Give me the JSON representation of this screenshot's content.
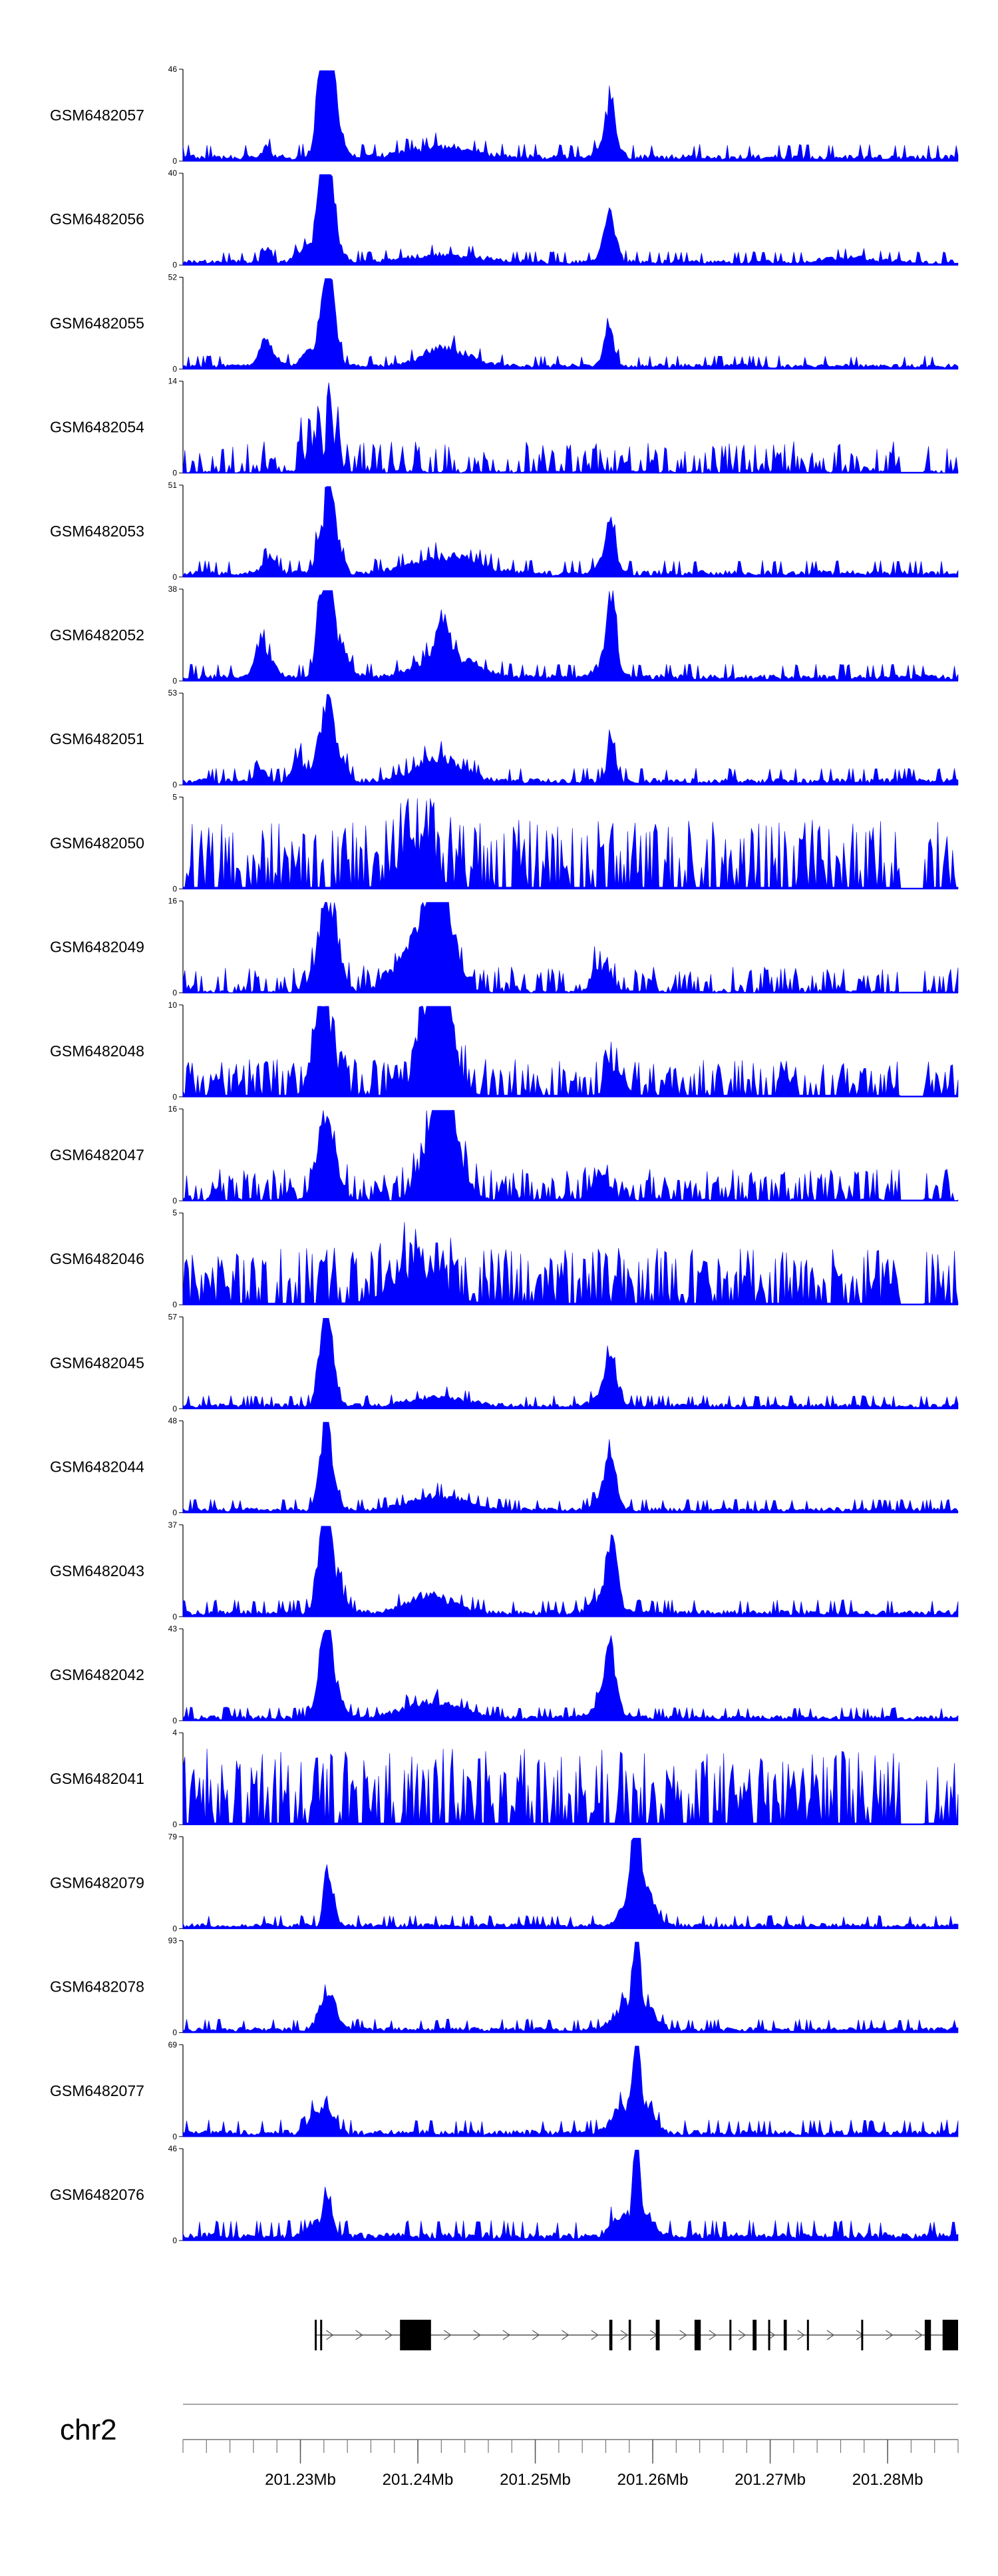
{
  "chart_data": {
    "type": "area",
    "chromosome": "chr2",
    "series_color": "#0000ff",
    "tracks": [
      {
        "name": "GSM6482057",
        "ymax": 46,
        "profile": "signal",
        "noise": 0.05,
        "peaks": [
          [
            0.176,
            0.42,
            0.004
          ],
          [
            0.18,
            0.45,
            0.004
          ],
          [
            0.18,
            0.25,
            0.01
          ],
          [
            0.187,
            1.0,
            0.004
          ],
          [
            0.195,
            0.6,
            0.004
          ],
          [
            0.195,
            0.25,
            0.012
          ],
          [
            0.108,
            0.15,
            0.004
          ],
          [
            0.334,
            0.12,
            0.04
          ],
          [
            0.552,
            0.55,
            0.004
          ],
          [
            0.549,
            0.25,
            0.01
          ]
        ]
      },
      {
        "name": "GSM6482056",
        "ymax": 40,
        "profile": "signal",
        "noise": 0.04,
        "peaks": [
          [
            0.11,
            0.15,
            0.005
          ],
          [
            0.155,
            0.12,
            0.01
          ],
          [
            0.176,
            0.45,
            0.004
          ],
          [
            0.188,
            1.0,
            0.006
          ],
          [
            0.185,
            0.4,
            0.014
          ],
          [
            0.34,
            0.08,
            0.045
          ],
          [
            0.55,
            0.5,
            0.008
          ],
          [
            0.86,
            0.05,
            0.03
          ]
        ]
      },
      {
        "name": "GSM6482055",
        "ymax": 52,
        "profile": "signal",
        "noise": 0.04,
        "peaks": [
          [
            0.105,
            0.2,
            0.006
          ],
          [
            0.112,
            0.12,
            0.012
          ],
          [
            0.162,
            0.18,
            0.008
          ],
          [
            0.178,
            0.42,
            0.005
          ],
          [
            0.187,
            1.0,
            0.005
          ],
          [
            0.196,
            0.4,
            0.006
          ],
          [
            0.34,
            0.2,
            0.03
          ],
          [
            0.55,
            0.45,
            0.006
          ]
        ]
      },
      {
        "name": "GSM6482054",
        "ymax": 14,
        "profile": "sparse",
        "noise": 0.22,
        "peaks": [
          [
            0.152,
            0.35,
            0.003
          ],
          [
            0.163,
            0.45,
            0.003
          ],
          [
            0.175,
            0.8,
            0.003
          ],
          [
            0.188,
            1.0,
            0.003
          ],
          [
            0.2,
            0.55,
            0.003
          ]
        ]
      },
      {
        "name": "GSM6482053",
        "ymax": 51,
        "profile": "signal",
        "noise": 0.05,
        "peaks": [
          [
            0.112,
            0.18,
            0.008
          ],
          [
            0.176,
            0.4,
            0.005
          ],
          [
            0.188,
            1.0,
            0.004
          ],
          [
            0.195,
            0.45,
            0.008
          ],
          [
            0.34,
            0.18,
            0.04
          ],
          [
            0.552,
            0.45,
            0.005
          ],
          [
            0.548,
            0.2,
            0.01
          ]
        ]
      },
      {
        "name": "GSM6482052",
        "ymax": 38,
        "profile": "signal",
        "noise": 0.05,
        "peaks": [
          [
            0.1,
            0.3,
            0.006
          ],
          [
            0.108,
            0.15,
            0.014
          ],
          [
            0.176,
            0.55,
            0.006
          ],
          [
            0.188,
            1.0,
            0.006
          ],
          [
            0.2,
            0.35,
            0.012
          ],
          [
            0.335,
            0.45,
            0.008
          ],
          [
            0.34,
            0.25,
            0.035
          ],
          [
            0.553,
            0.7,
            0.005
          ],
          [
            0.548,
            0.25,
            0.012
          ]
        ]
      },
      {
        "name": "GSM6482051",
        "ymax": 53,
        "profile": "signal",
        "noise": 0.05,
        "peaks": [
          [
            0.1,
            0.15,
            0.006
          ],
          [
            0.15,
            0.25,
            0.008
          ],
          [
            0.176,
            0.4,
            0.006
          ],
          [
            0.188,
            1.0,
            0.005
          ],
          [
            0.2,
            0.3,
            0.01
          ],
          [
            0.33,
            0.25,
            0.03
          ],
          [
            0.553,
            0.45,
            0.005
          ]
        ]
      },
      {
        "name": "GSM6482050",
        "ymax": 5,
        "profile": "noisy",
        "noise": 0.55,
        "peaks": [
          [
            0.3,
            0.45,
            0.02
          ]
        ]
      },
      {
        "name": "GSM6482049",
        "ymax": 16,
        "profile": "sparse",
        "noise": 0.18,
        "peaks": [
          [
            0.182,
            0.55,
            0.012
          ],
          [
            0.193,
            0.55,
            0.01
          ],
          [
            0.3,
            0.5,
            0.025
          ],
          [
            0.325,
            0.75,
            0.012
          ],
          [
            0.34,
            0.6,
            0.015
          ],
          [
            0.54,
            0.3,
            0.01
          ]
        ]
      },
      {
        "name": "GSM6482048",
        "ymax": 10,
        "profile": "noisy",
        "noise": 0.3,
        "peaks": [
          [
            0.175,
            0.55,
            0.01
          ],
          [
            0.185,
            0.7,
            0.01
          ],
          [
            0.315,
            0.6,
            0.015
          ],
          [
            0.33,
            0.75,
            0.012
          ],
          [
            0.34,
            0.5,
            0.015
          ],
          [
            0.56,
            0.3,
            0.01
          ]
        ]
      },
      {
        "name": "GSM6482047",
        "ymax": 16,
        "profile": "sparse",
        "noise": 0.22,
        "peaks": [
          [
            0.18,
            0.45,
            0.01
          ],
          [
            0.19,
            0.55,
            0.01
          ],
          [
            0.32,
            0.6,
            0.015
          ],
          [
            0.335,
            0.8,
            0.01
          ],
          [
            0.348,
            0.55,
            0.015
          ],
          [
            0.54,
            0.3,
            0.01
          ]
        ]
      },
      {
        "name": "GSM6482046",
        "ymax": 5,
        "profile": "noisy",
        "noise": 0.45,
        "peaks": [
          [
            0.3,
            0.35,
            0.03
          ]
        ]
      },
      {
        "name": "GSM6482045",
        "ymax": 57,
        "profile": "signal",
        "noise": 0.04,
        "peaks": [
          [
            0.176,
            0.42,
            0.005
          ],
          [
            0.185,
            1.0,
            0.004
          ],
          [
            0.19,
            0.45,
            0.008
          ],
          [
            0.33,
            0.1,
            0.035
          ],
          [
            0.552,
            0.42,
            0.006
          ],
          [
            0.546,
            0.2,
            0.012
          ]
        ]
      },
      {
        "name": "GSM6482044",
        "ymax": 48,
        "profile": "signal",
        "noise": 0.04,
        "peaks": [
          [
            0.176,
            0.4,
            0.005
          ],
          [
            0.185,
            1.0,
            0.004
          ],
          [
            0.19,
            0.45,
            0.008
          ],
          [
            0.33,
            0.15,
            0.035
          ],
          [
            0.552,
            0.5,
            0.006
          ],
          [
            0.546,
            0.2,
            0.012
          ]
        ]
      },
      {
        "name": "GSM6482043",
        "ymax": 37,
        "profile": "signal",
        "noise": 0.05,
        "peaks": [
          [
            0.176,
            0.55,
            0.006
          ],
          [
            0.186,
            1.0,
            0.005
          ],
          [
            0.195,
            0.45,
            0.01
          ],
          [
            0.32,
            0.2,
            0.03
          ],
          [
            0.554,
            0.6,
            0.006
          ],
          [
            0.546,
            0.25,
            0.014
          ]
        ]
      },
      {
        "name": "GSM6482042",
        "ymax": 43,
        "profile": "signal",
        "noise": 0.04,
        "peaks": [
          [
            0.176,
            0.45,
            0.006
          ],
          [
            0.186,
            1.0,
            0.005
          ],
          [
            0.195,
            0.35,
            0.01
          ],
          [
            0.32,
            0.18,
            0.035
          ],
          [
            0.552,
            0.6,
            0.006
          ],
          [
            0.546,
            0.25,
            0.014
          ]
        ]
      },
      {
        "name": "GSM6482041",
        "ymax": 4,
        "profile": "noisy",
        "noise": 0.6,
        "peaks": []
      },
      {
        "name": "GSM6482079",
        "ymax": 79,
        "profile": "signal",
        "noise": 0.04,
        "peaks": [
          [
            0.185,
            0.55,
            0.004
          ],
          [
            0.192,
            0.25,
            0.006
          ],
          [
            0.585,
            0.95,
            0.005
          ],
          [
            0.58,
            0.4,
            0.012
          ],
          [
            0.6,
            0.3,
            0.01
          ]
        ]
      },
      {
        "name": "GSM6482078",
        "ymax": 93,
        "profile": "signal",
        "noise": 0.04,
        "peaks": [
          [
            0.18,
            0.18,
            0.008
          ],
          [
            0.19,
            0.25,
            0.01
          ],
          [
            0.585,
            0.95,
            0.004
          ],
          [
            0.57,
            0.25,
            0.015
          ],
          [
            0.6,
            0.2,
            0.012
          ]
        ]
      },
      {
        "name": "GSM6482077",
        "ymax": 69,
        "profile": "signal",
        "noise": 0.05,
        "peaks": [
          [
            0.168,
            0.2,
            0.006
          ],
          [
            0.186,
            0.3,
            0.008
          ],
          [
            0.585,
            0.95,
            0.004
          ],
          [
            0.57,
            0.3,
            0.014
          ],
          [
            0.6,
            0.25,
            0.01
          ]
        ]
      },
      {
        "name": "GSM6482076",
        "ymax": 46,
        "profile": "signal",
        "noise": 0.06,
        "peaks": [
          [
            0.168,
            0.18,
            0.006
          ],
          [
            0.186,
            0.45,
            0.006
          ],
          [
            0.585,
            0.95,
            0.004
          ],
          [
            0.565,
            0.25,
            0.012
          ],
          [
            0.598,
            0.25,
            0.01
          ]
        ]
      }
    ],
    "gene_exons": [
      [
        0.17,
        0.171
      ],
      [
        0.177,
        0.178
      ],
      [
        0.28,
        0.32
      ],
      [
        0.55,
        0.554
      ],
      [
        0.575,
        0.578
      ],
      [
        0.61,
        0.615
      ],
      [
        0.66,
        0.668
      ],
      [
        0.705,
        0.707
      ],
      [
        0.735,
        0.74
      ],
      [
        0.755,
        0.757
      ],
      [
        0.775,
        0.779
      ],
      [
        0.805,
        0.807
      ],
      [
        0.875,
        0.877
      ],
      [
        0.957,
        0.965
      ],
      [
        0.98,
        1.0
      ]
    ],
    "gene_line": [
      0.17,
      1.0
    ],
    "x_range": [
      201220000,
      201286000
    ],
    "tick_step": 2000,
    "x_ticks": [
      {
        "pos": 201230000,
        "label": "201.23Mb"
      },
      {
        "pos": 201240000,
        "label": "201.24Mb"
      },
      {
        "pos": 201250000,
        "label": "201.25Mb"
      },
      {
        "pos": 201260000,
        "label": "201.26Mb"
      },
      {
        "pos": 201270000,
        "label": "201.27Mb"
      },
      {
        "pos": 201280000,
        "label": "201.28Mb"
      }
    ]
  }
}
